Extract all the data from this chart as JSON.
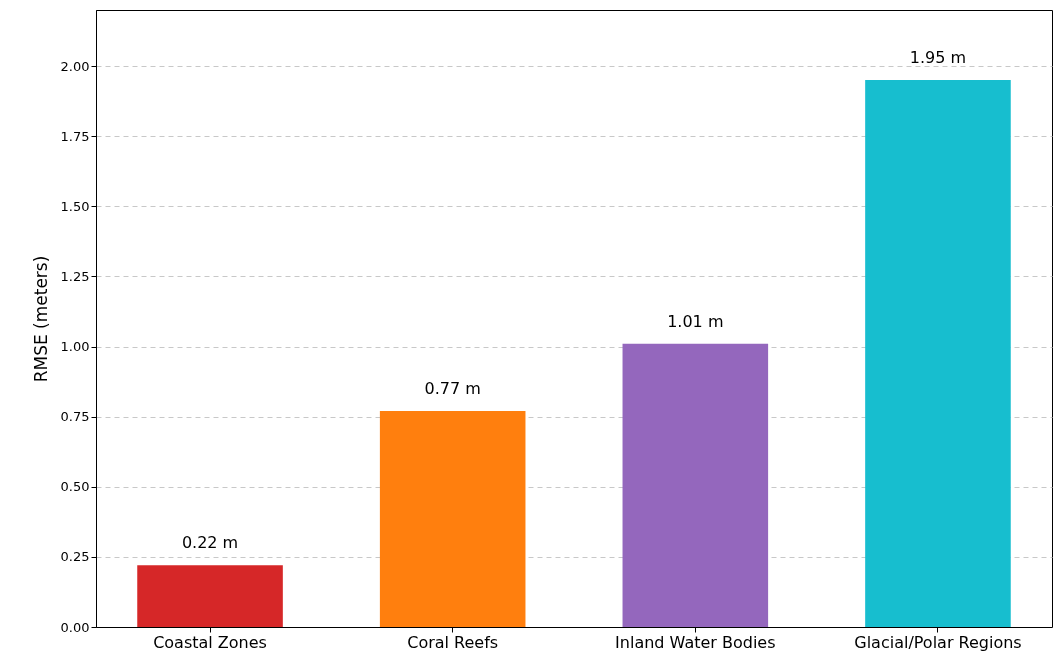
{
  "chart_data": {
    "type": "bar",
    "ylabel": "RMSE (meters)",
    "categories": [
      "Coastal Zones",
      "Coral Reefs",
      "Inland Water Bodies",
      "Glacial/Polar Regions"
    ],
    "values": [
      0.22,
      0.77,
      1.01,
      1.95
    ],
    "colors": [
      "#d62728",
      "#ff7f0e",
      "#9467bd",
      "#17becf"
    ],
    "value_labels": [
      "0.22 m",
      "0.77 m",
      "1.01 m",
      "1.95 m"
    ],
    "ylim": [
      0,
      2.2
    ],
    "yticks": [
      {
        "value": 0,
        "label": "0.00"
      },
      {
        "value": 0.25,
        "label": "0.25"
      },
      {
        "value": 0.5,
        "label": "0.50"
      },
      {
        "value": 0.75,
        "label": "0.75"
      },
      {
        "value": 1,
        "label": "1.00"
      },
      {
        "value": 1.25,
        "label": "1.25"
      },
      {
        "value": 1.5,
        "label": "1.50"
      },
      {
        "value": 1.75,
        "label": "1.75"
      },
      {
        "value": 2,
        "label": "2.00"
      }
    ],
    "grid": "y"
  }
}
